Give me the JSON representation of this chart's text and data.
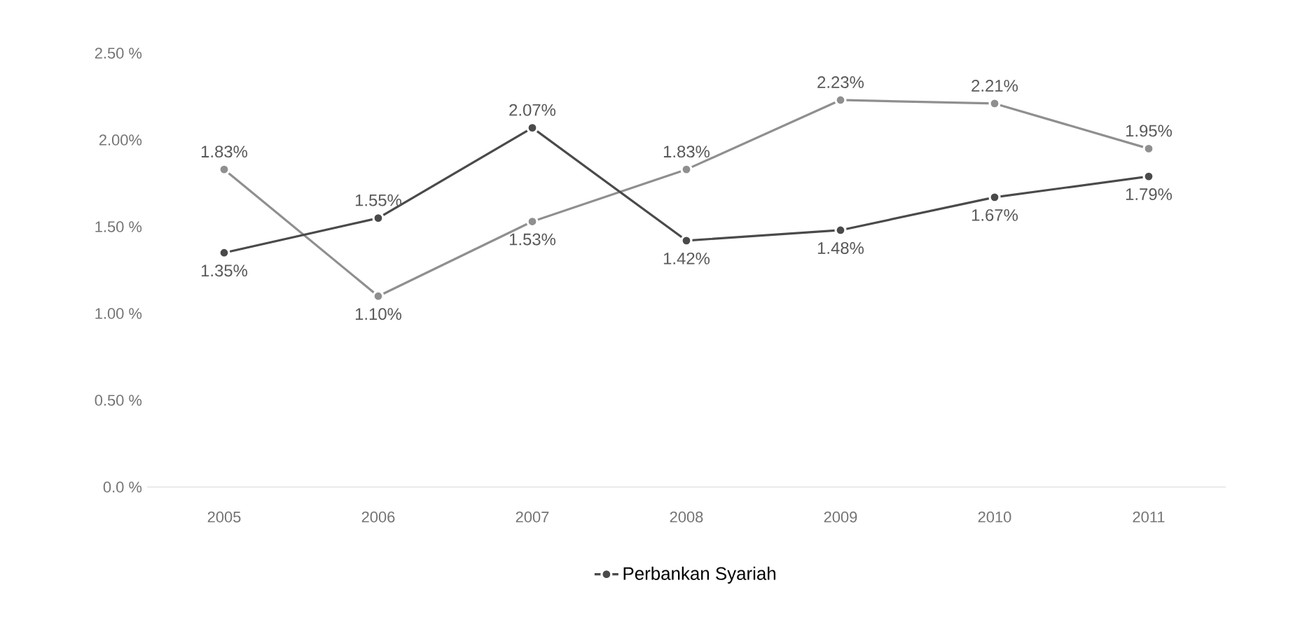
{
  "chart_data": {
    "type": "line",
    "categories": [
      "2005",
      "2006",
      "2007",
      "2008",
      "2009",
      "2010",
      "2011"
    ],
    "series": [
      {
        "color": "#8f8f8f",
        "values": [
          1.83,
          1.1,
          1.53,
          1.83,
          2.23,
          2.21,
          1.95
        ],
        "value_labels": [
          "1.83%",
          "1.10%",
          "1.53%",
          "1.83%",
          "2.23%",
          "2.21%",
          "1.95%"
        ]
      },
      {
        "name": "Perbankan Syariah",
        "color": "#4a4a4a",
        "values": [
          1.35,
          1.55,
          2.07,
          1.42,
          1.48,
          1.67,
          1.79
        ],
        "value_labels": [
          "1.35%",
          "1.55%",
          "2.07%",
          "1.42%",
          "1.48%",
          "1.67%",
          "1.79%"
        ]
      }
    ],
    "ylim": [
      0,
      2.5
    ],
    "yticks": [
      {
        "value": 0,
        "label": "0.0 %"
      },
      {
        "value": 0.5,
        "label": "0.50 %"
      },
      {
        "value": 1,
        "label": "1.00 %"
      },
      {
        "value": 1.5,
        "label": "1.50 %"
      },
      {
        "value": 2,
        "label": "2.00%"
      },
      {
        "value": 2.5,
        "label": "2.50 %"
      }
    ],
    "grid": false,
    "legend": "bottom",
    "marker": "circle",
    "line_style": "solid"
  }
}
